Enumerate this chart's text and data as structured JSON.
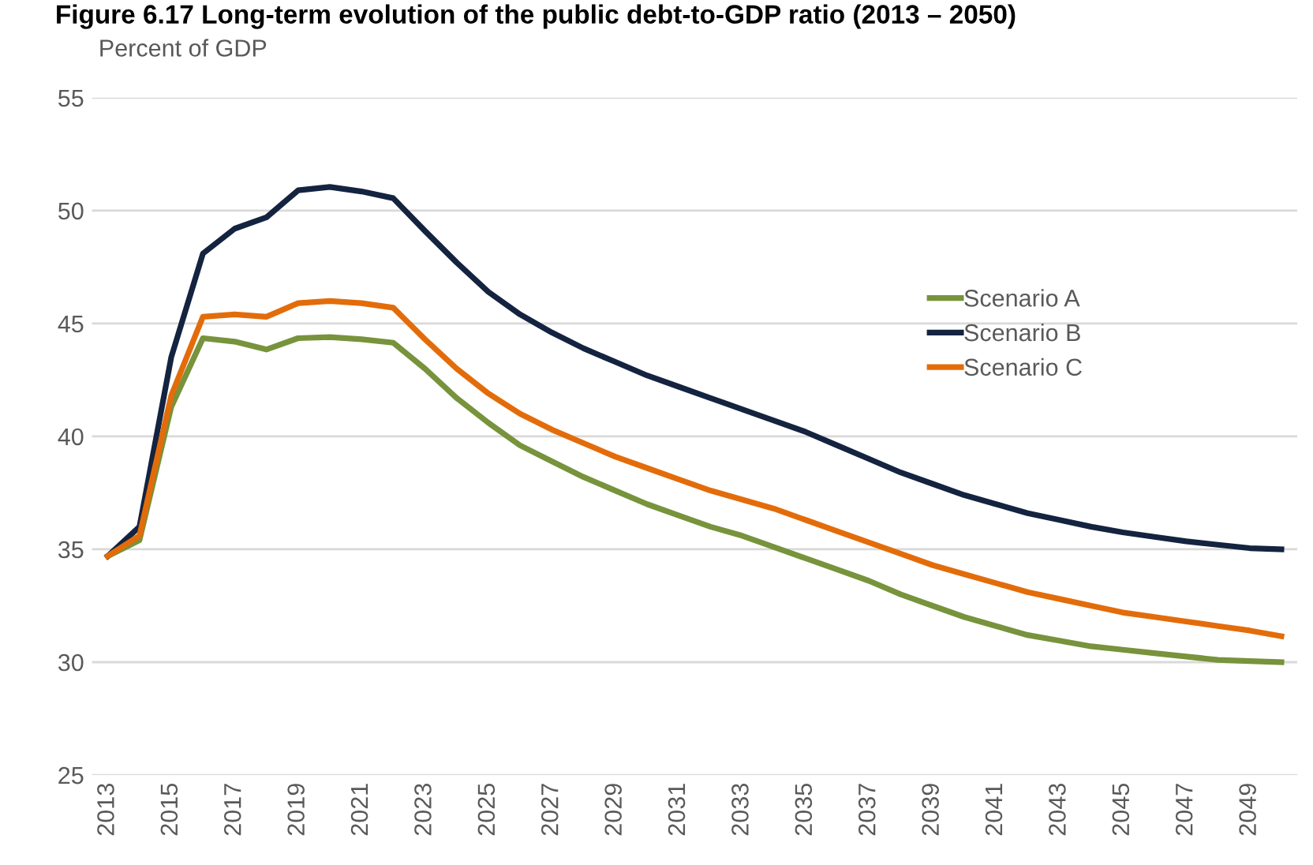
{
  "chart_data": {
    "type": "line",
    "title": "Figure 6.17 Long-term evolution of the public debt-to-GDP ratio (2013 – 2050)",
    "ylabel": "Percent of GDP",
    "categories": [
      "2013",
      null,
      "2015",
      null,
      "2017",
      null,
      "2019",
      null,
      "2021",
      null,
      "2023",
      null,
      "2025",
      null,
      "2027",
      null,
      "2029",
      null,
      "2031",
      null,
      "2033",
      null,
      "2035",
      null,
      "2037",
      null,
      "2039",
      null,
      "2041",
      null,
      "2043",
      null,
      "2045",
      null,
      "2047",
      null,
      "2049",
      null
    ],
    "series": [
      {
        "name": "Scenario A",
        "color": "#77933c",
        "values": [
          34.7,
          35.4,
          41.3,
          44.35,
          44.2,
          43.85,
          44.35,
          44.4,
          44.3,
          44.15,
          43.0,
          41.7,
          40.6,
          39.6,
          38.9,
          38.2,
          37.6,
          37.0,
          36.5,
          36.0,
          35.6,
          35.1,
          34.6,
          34.1,
          33.6,
          33.0,
          32.5,
          32.0,
          31.6,
          31.2,
          30.95,
          30.7,
          30.55,
          30.4,
          30.25,
          30.1,
          30.05,
          30.0
        ]
      },
      {
        "name": "Scenario B",
        "color": "#14233f",
        "values": [
          34.7,
          36.0,
          43.5,
          48.1,
          49.2,
          49.7,
          50.9,
          51.05,
          50.85,
          50.55,
          49.1,
          47.7,
          46.4,
          45.4,
          44.6,
          43.9,
          43.3,
          42.7,
          42.2,
          41.7,
          41.2,
          40.7,
          40.2,
          39.6,
          39.0,
          38.4,
          37.9,
          37.4,
          37.0,
          36.6,
          36.3,
          36.0,
          35.75,
          35.55,
          35.35,
          35.2,
          35.05,
          35.0
        ]
      },
      {
        "name": "Scenario C",
        "color": "#e36c0a",
        "values": [
          34.7,
          35.6,
          41.8,
          45.3,
          45.4,
          45.3,
          45.9,
          46.0,
          45.9,
          45.7,
          44.3,
          43.0,
          41.9,
          41.0,
          40.3,
          39.7,
          39.1,
          38.6,
          38.1,
          37.6,
          37.2,
          36.8,
          36.3,
          35.8,
          35.3,
          34.8,
          34.3,
          33.9,
          33.5,
          33.1,
          32.8,
          32.5,
          32.2,
          32.0,
          31.8,
          31.6,
          31.4,
          31.15
        ]
      }
    ],
    "ylim": [
      25,
      55
    ],
    "yticks": [
      25,
      30,
      35,
      40,
      45,
      50,
      55
    ],
    "grid": "y",
    "legend": "right",
    "marker": "none",
    "line_style": "solid"
  }
}
